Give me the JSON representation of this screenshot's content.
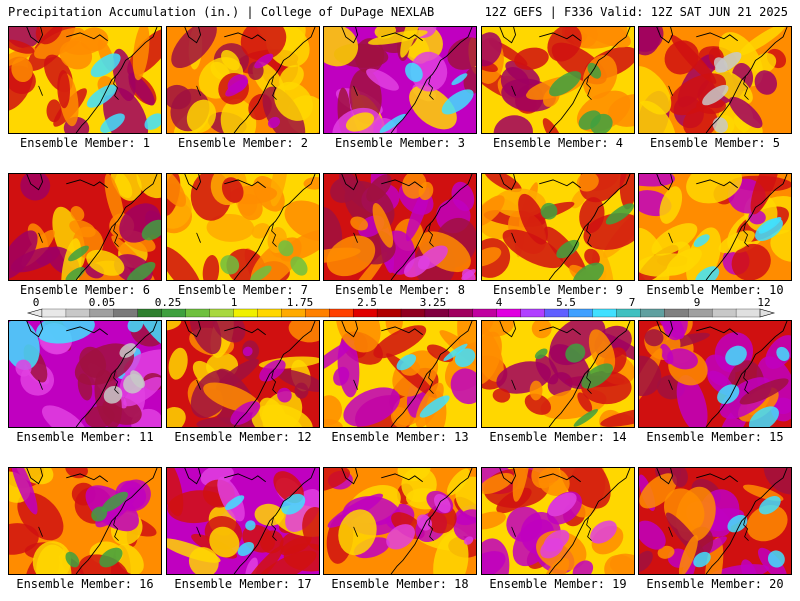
{
  "header": {
    "title_left": "Precipitation Accumulation (in.) | College of DuPage NEXLAB",
    "title_right": "12Z GEFS | F336 Valid: 12Z SAT JUN 21 2025"
  },
  "colorbar": {
    "tick_labels": [
      "0",
      "0.05",
      "0.25",
      "1",
      "1.75",
      "2.5",
      "3.25",
      "4",
      "5.5",
      "7",
      "9",
      "12"
    ],
    "colors": [
      "#e8e8e8",
      "#c8c8c8",
      "#a0a0a0",
      "#7a7a7a",
      "#2f7f2f",
      "#3fa03f",
      "#6fc03f",
      "#a8d83f",
      "#f0f000",
      "#ffd700",
      "#ffaa00",
      "#ff8000",
      "#ff4000",
      "#e00000",
      "#b00000",
      "#900020",
      "#800040",
      "#a00060",
      "#c000a0",
      "#e000e0",
      "#b040ff",
      "#6060ff",
      "#40a0ff",
      "#40e0ff",
      "#40c0c0",
      "#60a0a0",
      "#808080",
      "#a0a0a0",
      "#c8c8c8",
      "#e0e0e0"
    ]
  },
  "panel_label_prefix": "Ensemble Member:",
  "members": [
    {
      "number": "1",
      "caption": "Ensemble Member: 1",
      "palette": [
        "#ffd700",
        "#ff8c00",
        "#d01010",
        "#a00060"
      ],
      "accent": "#40e0ff"
    },
    {
      "number": "2",
      "caption": "Ensemble Member: 2",
      "palette": [
        "#ff8c00",
        "#d01010",
        "#a01040",
        "#ffd700"
      ],
      "accent": "#c000c0"
    },
    {
      "number": "3",
      "caption": "Ensemble Member: 3",
      "palette": [
        "#c000c0",
        "#e040e0",
        "#a01040",
        "#ffd700"
      ],
      "accent": "#40e0ff"
    },
    {
      "number": "4",
      "caption": "Ensemble Member: 4",
      "palette": [
        "#ffd700",
        "#ff8c00",
        "#d01010",
        "#a00060"
      ],
      "accent": "#3fa03f"
    },
    {
      "number": "5",
      "caption": "Ensemble Member: 5",
      "palette": [
        "#ff8c00",
        "#d01010",
        "#ffd700",
        "#a00060"
      ],
      "accent": "#c8c8c8"
    },
    {
      "number": "6",
      "caption": "Ensemble Member: 6",
      "palette": [
        "#d01010",
        "#a00060",
        "#ff8c00",
        "#ffd700"
      ],
      "accent": "#3fa03f"
    },
    {
      "number": "7",
      "caption": "Ensemble Member: 7",
      "palette": [
        "#ffd700",
        "#ff8c00",
        "#ffaa00",
        "#d01010"
      ],
      "accent": "#6fc03f"
    },
    {
      "number": "8",
      "caption": "Ensemble Member: 8",
      "palette": [
        "#d01010",
        "#a01040",
        "#ff8c00",
        "#c000c0"
      ],
      "accent": "#e040e0"
    },
    {
      "number": "9",
      "caption": "Ensemble Member: 9",
      "palette": [
        "#ffd700",
        "#ffaa00",
        "#ff8c00",
        "#d01010"
      ],
      "accent": "#3fa03f"
    },
    {
      "number": "10",
      "caption": "Ensemble Member: 10",
      "palette": [
        "#ff8c00",
        "#ffd700",
        "#d01010",
        "#c000c0"
      ],
      "accent": "#40e0ff"
    },
    {
      "number": "11",
      "caption": "Ensemble Member: 11",
      "palette": [
        "#c000c0",
        "#e040e0",
        "#a01040",
        "#40e0ff"
      ],
      "accent": "#c8c8c8"
    },
    {
      "number": "12",
      "caption": "Ensemble Member: 12",
      "palette": [
        "#d01010",
        "#a01040",
        "#ff8c00",
        "#ffd700"
      ],
      "accent": "#c000c0"
    },
    {
      "number": "13",
      "caption": "Ensemble Member: 13",
      "palette": [
        "#ffd700",
        "#ff8c00",
        "#d01010",
        "#c000c0"
      ],
      "accent": "#40e0ff"
    },
    {
      "number": "14",
      "caption": "Ensemble Member: 14",
      "palette": [
        "#ffd700",
        "#ff8c00",
        "#d01010",
        "#a00060"
      ],
      "accent": "#3fa03f"
    },
    {
      "number": "15",
      "caption": "Ensemble Member: 15",
      "palette": [
        "#d01010",
        "#a01040",
        "#ff8c00",
        "#c000c0"
      ],
      "accent": "#40e0ff"
    },
    {
      "number": "16",
      "caption": "Ensemble Member: 16",
      "palette": [
        "#ff8c00",
        "#d01010",
        "#c000c0",
        "#ffd700"
      ],
      "accent": "#3fa03f"
    },
    {
      "number": "17",
      "caption": "Ensemble Member: 17",
      "palette": [
        "#c000c0",
        "#e040e0",
        "#d01010",
        "#ffd700"
      ],
      "accent": "#40e0ff"
    },
    {
      "number": "18",
      "caption": "Ensemble Member: 18",
      "palette": [
        "#ff8c00",
        "#ffd700",
        "#d01010",
        "#c000c0"
      ],
      "accent": "#e040e0"
    },
    {
      "number": "19",
      "caption": "Ensemble Member: 19",
      "palette": [
        "#ffd700",
        "#ff8c00",
        "#d01010",
        "#c000c0"
      ],
      "accent": "#e040e0"
    },
    {
      "number": "20",
      "caption": "Ensemble Member: 20",
      "palette": [
        "#d01010",
        "#a01040",
        "#c000c0",
        "#ff8c00"
      ],
      "accent": "#40e0ff"
    }
  ]
}
